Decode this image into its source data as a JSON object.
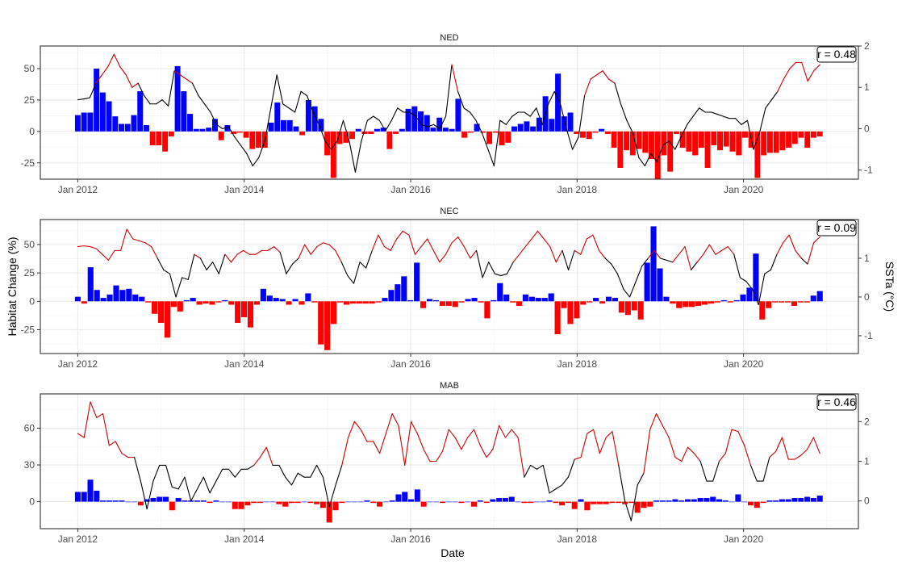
{
  "xlabel": "Date",
  "ylabel_left": "Habitat Change (%)",
  "ylabel_right": "SSTa (°C)",
  "colors": {
    "positive": "#0000ff",
    "negative": "#ff0000",
    "sst_warm": "#cc0000",
    "sst_cool": "#000000"
  },
  "x_tick_labels": [
    "Jan 2012",
    "Jan 2014",
    "Jan 2016",
    "Jan 2018",
    "Jan 2020"
  ],
  "chart_data": [
    {
      "type": "bar",
      "title": "NED",
      "annotation": "r = 0.48",
      "x_start": "2012-01",
      "x_end": "2020-12",
      "y_left_ticks": [
        -25,
        0,
        25,
        50
      ],
      "y_left_lim": [
        -38,
        68
      ],
      "y_right_ticks": [
        -1,
        0,
        1,
        2
      ],
      "y_right_lim": [
        -1.22,
        2.0
      ],
      "grid": true,
      "bars": [
        13,
        15,
        15,
        50,
        31,
        24,
        12,
        6,
        6,
        13,
        32,
        5,
        -11,
        -11,
        -16,
        -4,
        52,
        32,
        14,
        2,
        2,
        3,
        10,
        -7,
        5,
        -2,
        -1,
        -5,
        -14,
        -13,
        -13,
        7,
        23,
        9,
        9,
        4,
        -3,
        25,
        20,
        10,
        -19,
        -37,
        -10,
        -9,
        -6,
        2,
        -2,
        -2,
        2,
        3,
        -14,
        -2,
        2,
        18,
        20,
        16,
        13,
        3,
        11,
        3,
        2,
        26,
        -5,
        -1,
        6,
        -1,
        -10,
        -1,
        -11,
        -9,
        4,
        6,
        8,
        4,
        11,
        28,
        10,
        46,
        12,
        15,
        -2,
        -5,
        -6,
        -1,
        2,
        -2,
        -13,
        -29,
        -15,
        -19,
        -14,
        -17,
        -22,
        -38,
        -19,
        -32,
        -2,
        -13,
        -16,
        -19,
        -13,
        -29,
        -11,
        -15,
        -12,
        -16,
        -19,
        -5,
        -13,
        -37,
        -19,
        -17,
        -17,
        -15,
        -13,
        -10,
        -5,
        -13,
        -5,
        -4
      ],
      "sst": [
        0.7,
        0.72,
        0.75,
        1.1,
        1.3,
        1.5,
        1.8,
        1.5,
        1.3,
        1.0,
        1.1,
        0.8,
        0.6,
        0.6,
        0.7,
        0.55,
        1.4,
        1.3,
        1.2,
        1.1,
        0.8,
        0.6,
        0.4,
        0.1,
        0.0,
        0.05,
        -0.2,
        -0.4,
        -0.6,
        -0.9,
        -0.7,
        -0.3,
        0.5,
        1.3,
        0.6,
        0.5,
        0.4,
        0.9,
        0.8,
        0.4,
        0.1,
        -0.3,
        -0.5,
        -0.3,
        0.2,
        -0.3,
        -1.05,
        -0.3,
        0.2,
        0.3,
        0.2,
        -0.05,
        0.2,
        0.5,
        0.4,
        0.4,
        0.3,
        0.1,
        0.05,
        0.1,
        0.0,
        0.3,
        1.55,
        0.9,
        0.5,
        0.4,
        0.2,
        -0.1,
        -0.5,
        -0.9,
        0.2,
        0.1,
        0.3,
        0.4,
        0.4,
        0.3,
        0.5,
        0.1,
        0.6,
        0.9,
        0.6,
        0.0,
        -0.5,
        -0.2,
        0.8,
        1.2,
        1.3,
        1.4,
        1.2,
        1.1,
        0.6,
        0.2,
        -0.1,
        -0.7,
        -0.9,
        -0.6,
        -0.8,
        -0.4,
        -0.3,
        -0.5,
        -0.2,
        0.1,
        0.3,
        0.5,
        0.4,
        0.4,
        0.35,
        0.3,
        0.25,
        0.25,
        0.1,
        0.2,
        -0.5,
        -0.1,
        0.5,
        0.7,
        0.9,
        1.2,
        1.45,
        1.6,
        1.6,
        1.15,
        1.4,
        1.55
      ]
    },
    {
      "type": "bar",
      "title": "NEC",
      "annotation": "r = 0.09",
      "x_start": "2012-01",
      "x_end": "2020-12",
      "y_left_ticks": [
        -25,
        0,
        25,
        50
      ],
      "y_left_lim": [
        -46,
        72
      ],
      "y_right_ticks": [
        -1,
        0,
        1
      ],
      "y_right_lim": [
        -1.46,
        2.0
      ],
      "grid": true,
      "bars": [
        4,
        -2,
        30,
        10,
        3,
        6,
        14,
        10,
        11,
        6,
        4,
        -1,
        -11,
        -19,
        -32,
        -5,
        -9,
        1,
        3,
        -3,
        -2,
        -3,
        -1,
        1,
        -3,
        -19,
        -14,
        -23,
        -3,
        11,
        5,
        3,
        2,
        -3,
        2,
        -3,
        7,
        -1,
        -38,
        -43,
        -20,
        -1,
        -3,
        -2,
        -2,
        -2,
        -2,
        -1,
        3,
        10,
        15,
        22,
        1,
        34,
        -6,
        2,
        1,
        -4,
        -4,
        -5,
        -1,
        2,
        3,
        -1,
        -15,
        1,
        16,
        6,
        -1,
        -4,
        6,
        4,
        3,
        3,
        7,
        -29,
        -6,
        -20,
        -15,
        -3,
        -1,
        3,
        -2,
        4,
        3,
        -10,
        -12,
        -8,
        -16,
        34,
        66,
        29,
        4,
        -2,
        -6,
        -5,
        -5,
        -4,
        -3,
        -2,
        -1,
        1,
        -1,
        1,
        6,
        12,
        42,
        -16,
        -6,
        -1,
        -1,
        -1,
        -4,
        -1,
        -1,
        5,
        9
      ],
      "sst": [
        1.3,
        1.32,
        1.3,
        1.25,
        1.1,
        0.95,
        1.2,
        1.2,
        1.75,
        1.5,
        1.45,
        1.4,
        1.3,
        1.0,
        0.7,
        0.6,
        0.0,
        0.5,
        0.45,
        1.1,
        1.0,
        0.7,
        0.9,
        0.6,
        1.1,
        0.9,
        1.1,
        1.2,
        1.1,
        1.1,
        1.2,
        1.2,
        1.3,
        1.15,
        0.6,
        0.85,
        1.0,
        1.35,
        1.1,
        1.3,
        1.4,
        1.35,
        1.2,
        0.9,
        0.55,
        0.35,
        0.9,
        0.75,
        1.2,
        1.6,
        1.3,
        1.2,
        1.5,
        1.7,
        1.6,
        1.1,
        1.3,
        1.5,
        1.2,
        0.9,
        1.1,
        1.4,
        1.55,
        1.3,
        1.0,
        1.2,
        0.5,
        0.9,
        0.6,
        0.55,
        0.6,
        0.9,
        1.1,
        1.3,
        1.5,
        1.7,
        1.5,
        1.3,
        0.9,
        1.2,
        0.7,
        1.2,
        1.1,
        1.5,
        1.6,
        1.2,
        1.0,
        0.85,
        0.6,
        0.2,
        0.0,
        0.4,
        0.8,
        1.0,
        1.2,
        1.0,
        0.95,
        0.9,
        1.1,
        1.3,
        0.7,
        0.9,
        1.1,
        1.35,
        1.1,
        1.2,
        1.3,
        1.1,
        0.5,
        0.4,
        0.2,
        -0.2,
        0.6,
        0.7,
        1.1,
        1.4,
        1.6,
        1.2,
        1.0,
        0.85,
        1.4,
        1.55
      ]
    },
    {
      "type": "bar",
      "title": "MAB",
      "annotation": "r = 0.46",
      "x_start": "2012-01",
      "x_end": "2020-12",
      "y_left_ticks": [
        0,
        30,
        60
      ],
      "y_left_lim": [
        -22,
        88
      ],
      "y_right_ticks": [
        0,
        1,
        2
      ],
      "y_right_lim": [
        -0.7,
        2.7
      ],
      "grid": true,
      "bars": [
        8,
        8,
        18,
        9,
        1,
        1,
        1,
        1,
        0,
        0,
        -3,
        2,
        3,
        4,
        4,
        -7,
        3,
        1,
        1,
        1,
        1,
        -1,
        1,
        0,
        0,
        -6,
        -6,
        -3,
        -1,
        -1,
        0,
        0,
        -2,
        -4,
        -1,
        -1,
        0,
        -1,
        -2,
        -5,
        -17,
        -7,
        -1,
        0,
        0,
        0,
        1,
        -1,
        -4,
        0,
        1,
        6,
        8,
        2,
        10,
        -4,
        0,
        0,
        -1,
        0,
        0,
        -1,
        0,
        -4,
        1,
        -1,
        2,
        3,
        3,
        4,
        0,
        -1,
        -1,
        0,
        0,
        1,
        -1,
        -3,
        -1,
        -6,
        2,
        -7,
        -2,
        -2,
        -2,
        -1,
        -1,
        -2,
        -1,
        -9,
        -5,
        -4,
        1,
        1,
        1,
        2,
        1,
        2,
        2,
        3,
        3,
        4,
        2,
        1,
        0,
        6,
        0,
        -3,
        -5,
        -1,
        1,
        1,
        2,
        2,
        3,
        3,
        4,
        3,
        5
      ],
      "sst": [
        1.7,
        1.6,
        2.5,
        2.1,
        2.2,
        1.4,
        1.5,
        1.2,
        1.1,
        1.1,
        0.5,
        -0.2,
        0.5,
        0.9,
        0.9,
        0.35,
        0.3,
        0.6,
        0.0,
        0.3,
        0.6,
        0.2,
        0.5,
        0.8,
        0.8,
        0.6,
        0.8,
        0.8,
        0.9,
        1.1,
        1.35,
        0.9,
        0.9,
        0.6,
        0.4,
        0.7,
        0.6,
        0.6,
        0.9,
        0.6,
        -0.15,
        0.4,
        0.9,
        1.6,
        2.0,
        1.8,
        1.5,
        1.5,
        1.2,
        1.7,
        2.2,
        1.9,
        0.9,
        2.0,
        1.7,
        1.3,
        1.0,
        1.0,
        1.25,
        1.8,
        1.6,
        1.3,
        1.6,
        1.8,
        1.4,
        1.1,
        1.3,
        1.9,
        1.6,
        1.8,
        1.6,
        0.6,
        0.9,
        0.8,
        0.9,
        0.2,
        0.3,
        0.4,
        0.6,
        1.05,
        1.1,
        1.7,
        1.8,
        1.2,
        1.6,
        1.75,
        0.9,
        0.0,
        -0.5,
        0.4,
        0.7,
        1.8,
        2.2,
        1.9,
        1.6,
        1.1,
        1.0,
        1.35,
        1.2,
        1.0,
        0.5,
        0.5,
        1.0,
        1.2,
        1.8,
        1.75,
        1.4,
        0.9,
        0.5,
        0.5,
        1.1,
        1.25,
        1.6,
        1.05,
        1.05,
        1.15,
        1.3,
        1.6,
        1.2
      ]
    }
  ]
}
